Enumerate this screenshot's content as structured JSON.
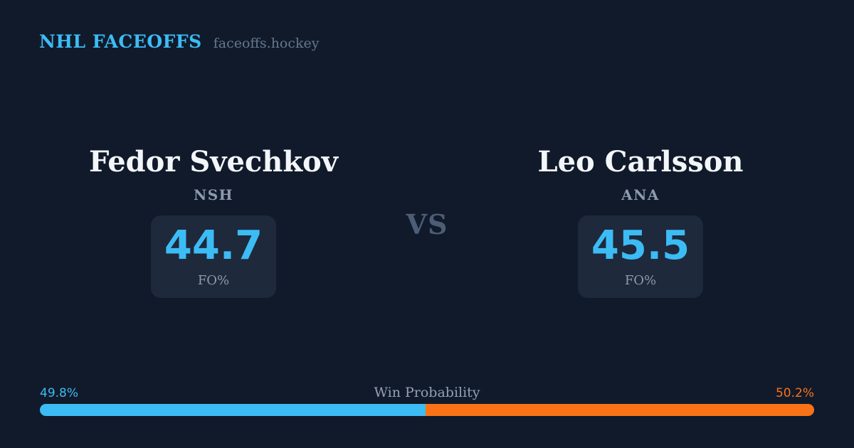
{
  "header": {
    "title": "NHL FACEOFFS",
    "domain": "faceoffs.hockey"
  },
  "matchup": {
    "vs_label": "VS",
    "players": [
      {
        "name": "Fedor Svechkov",
        "team": "NSH",
        "stat_value": "44.7",
        "stat_label": "FO%"
      },
      {
        "name": "Leo Carlsson",
        "team": "ANA",
        "stat_value": "45.5",
        "stat_label": "FO%"
      }
    ]
  },
  "win_probability": {
    "label": "Win Probability",
    "left_percent_label": "49.8%",
    "right_percent_label": "50.2%",
    "left_value": 49.8,
    "right_value": 50.2
  },
  "colors": {
    "background": "#111a2b",
    "card_background": "#1e293b",
    "accent_blue": "#3cbcf5",
    "accent_orange": "#f97316",
    "text_primary": "#f3f6f9",
    "text_muted": "#8c9bb0"
  }
}
